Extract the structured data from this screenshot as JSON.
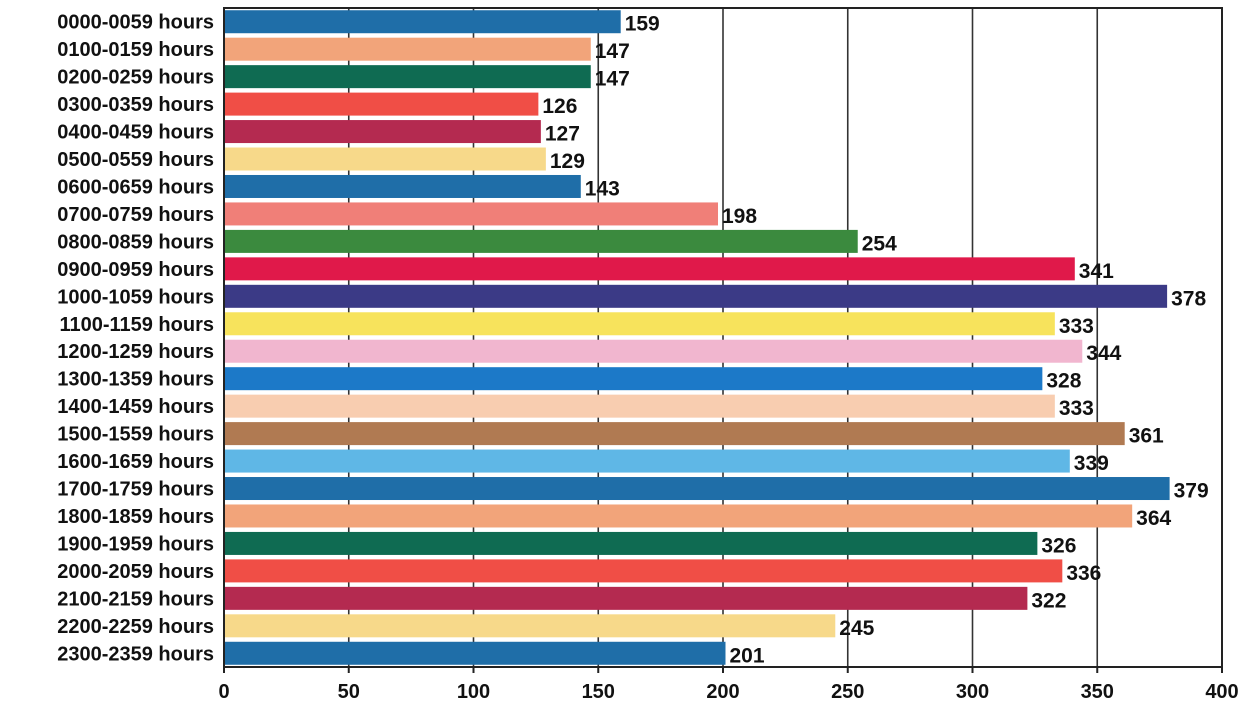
{
  "chart_data": {
    "type": "bar",
    "orientation": "horizontal",
    "title": "",
    "xlabel": "",
    "ylabel": "",
    "xlim": [
      0,
      400
    ],
    "xticks": [
      0,
      50,
      100,
      150,
      200,
      250,
      300,
      350,
      400
    ],
    "grid": "vertical",
    "legend": "none",
    "categories": [
      "0000-0059 hours",
      "0100-0159 hours",
      "0200-0259 hours",
      "0300-0359 hours",
      "0400-0459 hours",
      "0500-0559 hours",
      "0600-0659 hours",
      "0700-0759 hours",
      "0800-0859 hours",
      "0900-0959 hours",
      "1000-1059 hours",
      "1100-1159 hours",
      "1200-1259 hours",
      "1300-1359 hours",
      "1400-1459 hours",
      "1500-1559 hours",
      "1600-1659 hours",
      "1700-1759 hours",
      "1800-1859 hours",
      "1900-1959 hours",
      "2000-2059 hours",
      "2100-2159 hours",
      "2200-2259 hours",
      "2300-2359 hours"
    ],
    "values": [
      159,
      147,
      147,
      126,
      127,
      129,
      143,
      198,
      254,
      341,
      378,
      333,
      344,
      328,
      333,
      361,
      339,
      379,
      364,
      326,
      336,
      322,
      245,
      201
    ],
    "colors": [
      "#1f6ea8",
      "#f2a47a",
      "#0f6b52",
      "#f04e46",
      "#b42a50",
      "#f7d98a",
      "#1f6ea8",
      "#f07f78",
      "#3b8a3e",
      "#e0194a",
      "#3b3a86",
      "#f7e35c",
      "#f1b6cf",
      "#1c79c8",
      "#f8cdb0",
      "#b07a52",
      "#5fb7e6",
      "#1f6ea8",
      "#f2a47a",
      "#0f6b52",
      "#f04e46",
      "#b42a50",
      "#f7d98a",
      "#1f6ea8"
    ],
    "axis_color": "#222222",
    "grid_color": "#333333"
  }
}
